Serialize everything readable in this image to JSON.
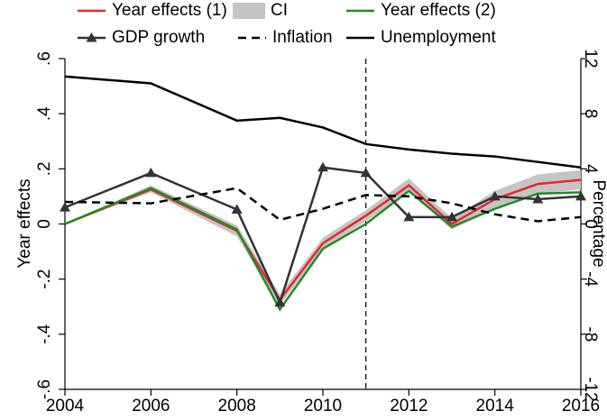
{
  "chart_data": {
    "type": "line",
    "x": [
      2004,
      2006,
      2008,
      2009,
      2010,
      2011,
      2012,
      2013,
      2014,
      2015,
      2016
    ],
    "xlim": [
      2004,
      2016
    ],
    "xticks": [
      2004,
      2006,
      2008,
      2010,
      2012,
      2014,
      2016
    ],
    "ylim": [
      -0.6,
      0.6
    ],
    "yticks": [
      {
        "value": -0.6,
        "label": "-.6"
      },
      {
        "value": -0.4,
        "label": "-.4"
      },
      {
        "value": -0.2,
        "label": "-.2"
      },
      0,
      {
        "value": 0.2,
        "label": ".2"
      },
      {
        "value": 0.4,
        "label": ".4"
      },
      {
        "value": 0.6,
        "label": ".6"
      }
    ],
    "y2lim": [
      -12,
      12
    ],
    "y2ticks": [
      -12,
      -8,
      -4,
      0,
      4,
      8,
      12
    ],
    "ylabel": "Year effects",
    "y2label": "Percentage",
    "vline": 2011,
    "series": [
      {
        "name": "Year effects (1)",
        "color": "#e8262a",
        "values": [
          0,
          0.125,
          -0.025,
          -0.275,
          -0.07,
          0.03,
          0.14,
          0.0,
          0.09,
          0.145,
          0.16
        ]
      },
      {
        "name": "CI",
        "color": "#c4c4c4",
        "upper": [
          0,
          0.14,
          -0.005,
          -0.255,
          -0.05,
          0.05,
          0.165,
          0.02,
          0.12,
          0.18,
          0.195
        ],
        "lower": [
          0,
          0.115,
          -0.045,
          -0.295,
          -0.09,
          0.01,
          0.115,
          -0.02,
          0.06,
          0.11,
          0.125
        ]
      },
      {
        "name": "Year effects (2)",
        "color": "#228b22",
        "values": [
          0,
          0.13,
          -0.02,
          -0.31,
          -0.09,
          0.0,
          0.12,
          -0.01,
          0.055,
          0.11,
          0.115
        ]
      },
      {
        "name": "GDP growth",
        "color": "#333333",
        "marker": "triangle",
        "axis": "y2",
        "values": [
          1.2,
          3.7,
          1.05,
          -5.7,
          4.1,
          3.7,
          0.5,
          0.5,
          2.0,
          1.8,
          2.0
        ]
      },
      {
        "name": "Inflation",
        "color": "#000000",
        "dash": true,
        "axis": "y2",
        "values": [
          1.6,
          1.5,
          2.6,
          0.3,
          1.1,
          2.1,
          2.0,
          1.5,
          0.7,
          0.2,
          0.5
        ]
      },
      {
        "name": "Unemployment",
        "color": "#000000",
        "axis": "y2",
        "values": [
          10.7,
          10.2,
          7.5,
          7.7,
          7.0,
          5.8,
          5.4,
          5.1,
          4.9,
          4.5,
          4.1
        ]
      }
    ]
  }
}
